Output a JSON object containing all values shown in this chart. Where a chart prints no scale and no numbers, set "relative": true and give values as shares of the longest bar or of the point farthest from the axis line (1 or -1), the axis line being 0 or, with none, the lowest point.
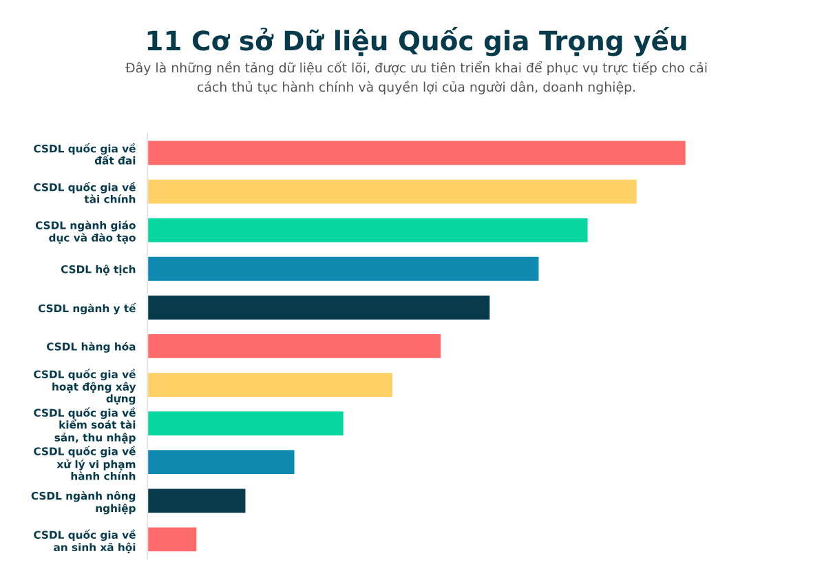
{
  "chart_data": {
    "type": "bar",
    "orientation": "horizontal",
    "relative": true,
    "title": "11 Cơ sở Dữ liệu Quốc gia Trọng yếu",
    "subtitle": "Đây là những nền tảng dữ liệu cốt lõi, được ưu tiên triển khai để phục vụ trực tiếp cho cải\ncách thủ tục hành chính và quyền lợi của người dân, doanh nghiệp.",
    "categories": [
      "CSDL quốc gia về\nđất đai",
      "CSDL quốc gia về\ntài chính",
      "CSDL ngành giáo\ndục và đào tạo",
      "CSDL hộ tịch",
      "CSDL ngành y tế",
      "CSDL hàng hóa",
      "CSDL quốc gia về\nhoạt động xây\ndựng",
      "CSDL quốc gia về\nkiểm soát tài\nsản, thu nhập",
      "CSDL quốc gia về\nxử lý vi phạm\nhành chính",
      "CSDL ngành nông\nnghiệp",
      "CSDL quốc gia về\nan sinh xã hội"
    ],
    "values": [
      1,
      0.909,
      0.818,
      0.727,
      0.636,
      0.545,
      0.455,
      0.364,
      0.273,
      0.182,
      0.091
    ],
    "colors": [
      "#ff6b6b",
      "#ffd166",
      "#06d6a0",
      "#118ab2",
      "#073b4c",
      "#ff6b6b",
      "#ffd166",
      "#06d6a0",
      "#118ab2",
      "#073b4c",
      "#ff6b6b"
    ],
    "grid": false,
    "legend": false
  }
}
